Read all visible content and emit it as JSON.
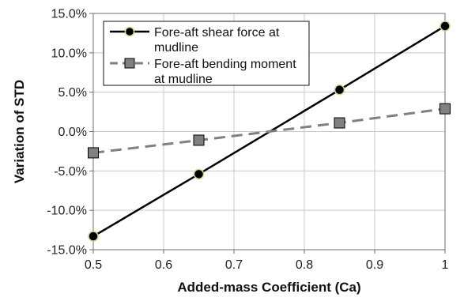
{
  "chart_data": {
    "type": "line",
    "title": "",
    "xlabel": "Added-mass Coefficient (Ca)",
    "ylabel": "Variation of  STD",
    "xlim": [
      0.5,
      1.0
    ],
    "ylim": [
      -15.0,
      15.0
    ],
    "x_ticks": [
      "0.5",
      "0.6",
      "0.7",
      "0.8",
      "0.9",
      "1"
    ],
    "y_ticks": [
      "15.0%",
      "10.0%",
      "5.0%",
      "0.0%",
      "-5.0%",
      "-10.0%",
      "-15.0%"
    ],
    "grid": true,
    "legend_position": "top-left",
    "series": [
      {
        "name": "Fore-aft shear force at mudline",
        "legend_lines": [
          "Fore-aft shear force at",
          "mudline"
        ],
        "x": [
          0.5,
          0.65,
          0.85,
          1.0
        ],
        "y": [
          -13.3,
          -5.4,
          5.3,
          13.4
        ],
        "line_color": "#000000",
        "line_style": "solid",
        "marker": "circle",
        "marker_fill": "#000000",
        "marker_edge": "#c8d98a"
      },
      {
        "name": "Fore-aft bending moment at mudline",
        "legend_lines": [
          "Fore-aft bending moment",
          "at mudline"
        ],
        "x": [
          0.5,
          0.65,
          0.85,
          1.0
        ],
        "y": [
          -2.7,
          -1.1,
          1.1,
          2.9
        ],
        "line_color": "#808080",
        "line_style": "dashed",
        "marker": "square",
        "marker_fill": "#808080",
        "marker_edge": "#000000"
      }
    ]
  }
}
